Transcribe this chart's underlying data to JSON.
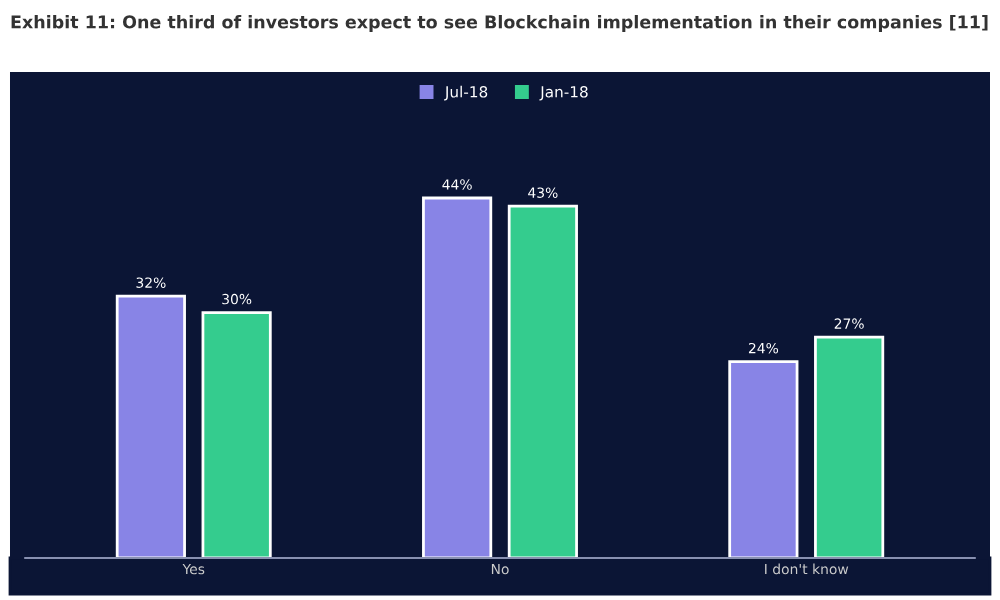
{
  "chart_data": {
    "type": "bar",
    "title": "Exhibit 11: One third of investors expect to see Blockchain implementation in their companies [11]",
    "categories": [
      "Yes",
      "No",
      "I don't know"
    ],
    "series": [
      {
        "name": "Jul-18",
        "color": "#8884e6",
        "values": [
          32,
          44,
          24
        ],
        "value_labels": [
          "32%",
          "44%",
          "24%"
        ]
      },
      {
        "name": "Jan-18",
        "color": "#34cc8e",
        "values": [
          30,
          43,
          27
        ],
        "value_labels": [
          "30%",
          "43%",
          "27%"
        ]
      }
    ],
    "legend": "top",
    "grid": false
  }
}
